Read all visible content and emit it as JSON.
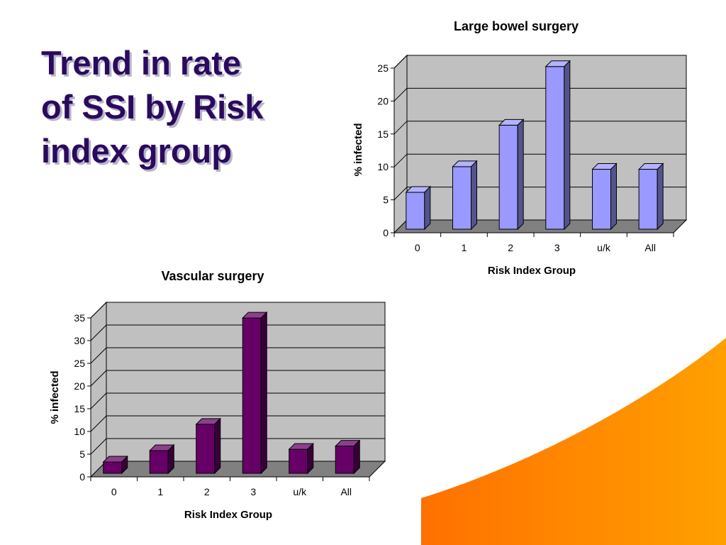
{
  "slide": {
    "title_lines": [
      "Trend in rate",
      "of SSI by Risk",
      "index group"
    ]
  },
  "colors": {
    "title": "#2a0a5e",
    "accent_orange": "#ff8c00",
    "plot_back": "#c0c0c0",
    "floor": "#808080"
  },
  "chart_data": [
    {
      "type": "bar",
      "title": "Large bowel surgery",
      "xlabel": "Risk Index Group",
      "ylabel": "% infected",
      "categories": [
        "0",
        "1",
        "2",
        "3",
        "u/k",
        "All"
      ],
      "values": [
        5.6,
        9.5,
        15.8,
        24.7,
        9.1,
        9.1
      ],
      "ylim": [
        0,
        25
      ],
      "yticks": [
        "0",
        "5",
        "10",
        "15",
        "20",
        "25"
      ],
      "grid": true,
      "bar_color": "#9999ff"
    },
    {
      "type": "bar",
      "title": "Vascular surgery",
      "xlabel": "Risk Index Group",
      "ylabel": "% infected",
      "categories": [
        "0",
        "1",
        "2",
        "3",
        "u/k",
        "All"
      ],
      "values": [
        2.5,
        5.0,
        10.8,
        34.2,
        5.3,
        6.0
      ],
      "ylim": [
        0,
        35
      ],
      "yticks": [
        "0",
        "5",
        "10",
        "15",
        "20",
        "25",
        "30",
        "35"
      ],
      "grid": true,
      "bar_color": "#660066"
    }
  ]
}
